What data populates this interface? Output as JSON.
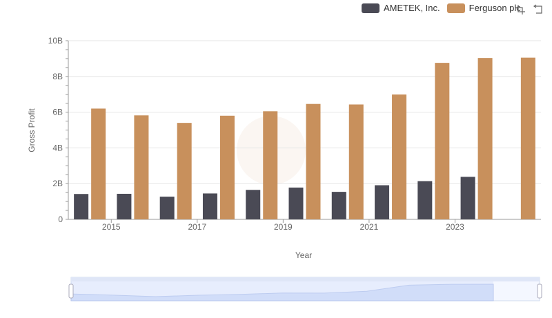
{
  "colors": {
    "ametek": "#4a4a55",
    "ferguson": "#c8905c"
  },
  "toolbox": {
    "zoom": "zoom-icon",
    "restore": "restore-icon"
  },
  "chart_data": {
    "type": "bar",
    "title": "",
    "xlabel": "Year",
    "ylabel": "Gross Profit",
    "ylim": [
      0,
      10000000000
    ],
    "yticks": [
      "0",
      "2B",
      "4B",
      "6B",
      "8B",
      "10B"
    ],
    "xtick_labels": [
      "2015",
      "2017",
      "2019",
      "2021",
      "2023"
    ],
    "categories": [
      "2014",
      "2015",
      "2016",
      "2017",
      "2018",
      "2019",
      "2020",
      "2021",
      "2022",
      "2023",
      "2024"
    ],
    "series": [
      {
        "name": "AMETEK, Inc.",
        "color": "#4a4a55",
        "values": [
          1420000000,
          1430000000,
          1270000000,
          1450000000,
          1650000000,
          1780000000,
          1540000000,
          1910000000,
          2140000000,
          2380000000,
          null
        ]
      },
      {
        "name": "Ferguson plc",
        "color": "#c8905c",
        "values": [
          6200000000,
          5820000000,
          5400000000,
          5800000000,
          6050000000,
          6460000000,
          6430000000,
          6990000000,
          8760000000,
          9030000000,
          9050000000
        ]
      }
    ],
    "legend_position": "top-right",
    "grid": true
  }
}
